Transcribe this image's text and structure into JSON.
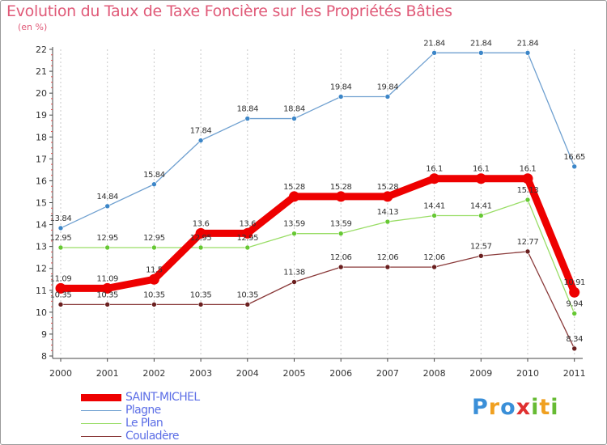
{
  "header": {
    "title": "Evolution du Taux de Taxe Foncière sur les Propriétés Bâties",
    "unit": "(en %)"
  },
  "chart_data": {
    "type": "line",
    "title": "Evolution du Taux de Taxe Foncière sur les Propriétés Bâties",
    "ylabel": "(en %)",
    "xlabel": "",
    "ylim": [
      8,
      22
    ],
    "yticks": [
      8,
      9,
      10,
      11,
      12,
      13,
      14,
      15,
      16,
      17,
      18,
      19,
      20,
      21,
      22
    ],
    "categories": [
      "2000",
      "2001",
      "2002",
      "2003",
      "2004",
      "2005",
      "2006",
      "2007",
      "2008",
      "2009",
      "2010",
      "2011"
    ],
    "grid": "vertical dashed",
    "series": [
      {
        "name": "Plagne",
        "color": "#6fa0d0",
        "marker_color": "#3c86c8",
        "values": [
          13.84,
          14.84,
          15.84,
          17.84,
          18.84,
          18.84,
          19.84,
          19.84,
          21.84,
          21.84,
          21.84,
          16.65
        ],
        "labels": [
          "13.84",
          "14.84",
          "15.84",
          "17.84",
          "18.84",
          "18.84",
          "19.84",
          "19.84",
          "21.84",
          "21.84",
          "21.84",
          "16.65"
        ]
      },
      {
        "name": "Le Plan",
        "color": "#99dd66",
        "marker_color": "#66c833",
        "values": [
          12.95,
          12.95,
          12.95,
          12.95,
          12.95,
          13.59,
          13.59,
          14.13,
          14.41,
          14.41,
          15.13,
          9.94
        ],
        "labels": [
          "12.95",
          "12.95",
          "12.95",
          "12.95",
          "12.95",
          "13.59",
          "13.59",
          "14.13",
          "14.41",
          "14.41",
          "15.13",
          "9.94"
        ]
      },
      {
        "name": "Couladère",
        "color": "#8a3a3a",
        "marker_color": "#6a1f1f",
        "values": [
          10.35,
          10.35,
          10.35,
          10.35,
          10.35,
          11.38,
          12.06,
          12.06,
          12.06,
          12.57,
          12.77,
          8.34
        ],
        "labels": [
          "10.35",
          "10.35",
          "10.35",
          "10.35",
          "10.35",
          "11.38",
          "12.06",
          "12.06",
          "12.06",
          "12.57",
          "12.77",
          "8.34"
        ]
      },
      {
        "name": "SAINT-MICHEL",
        "color": "#ee0000",
        "marker_color": "#ee0000",
        "values": [
          11.09,
          11.09,
          11.5,
          13.6,
          13.6,
          15.28,
          15.28,
          15.28,
          16.1,
          16.1,
          16.1,
          10.91
        ],
        "labels": [
          "11.09",
          "11.09",
          "11.5",
          "13.6",
          "13.6",
          "15.28",
          "15.28",
          "15.28",
          "16.1",
          "16.1",
          "16.1",
          "10.91"
        ]
      }
    ]
  },
  "legend": {
    "items": [
      {
        "label": "SAINT-MICHEL",
        "color": "#ee0000"
      },
      {
        "label": "Plagne",
        "color": "#6fa0d0"
      },
      {
        "label": "Le Plan",
        "color": "#99dd66"
      },
      {
        "label": "Couladère",
        "color": "#8a3a3a"
      }
    ]
  },
  "logo": {
    "letters": [
      "P",
      "r",
      "o",
      "x",
      "i",
      "t",
      "i"
    ],
    "colors": [
      "#3a8fd8",
      "#f0a020",
      "#3a8fd8",
      "#e03030",
      "#66bb33",
      "#f0a020",
      "#66bb33"
    ]
  }
}
